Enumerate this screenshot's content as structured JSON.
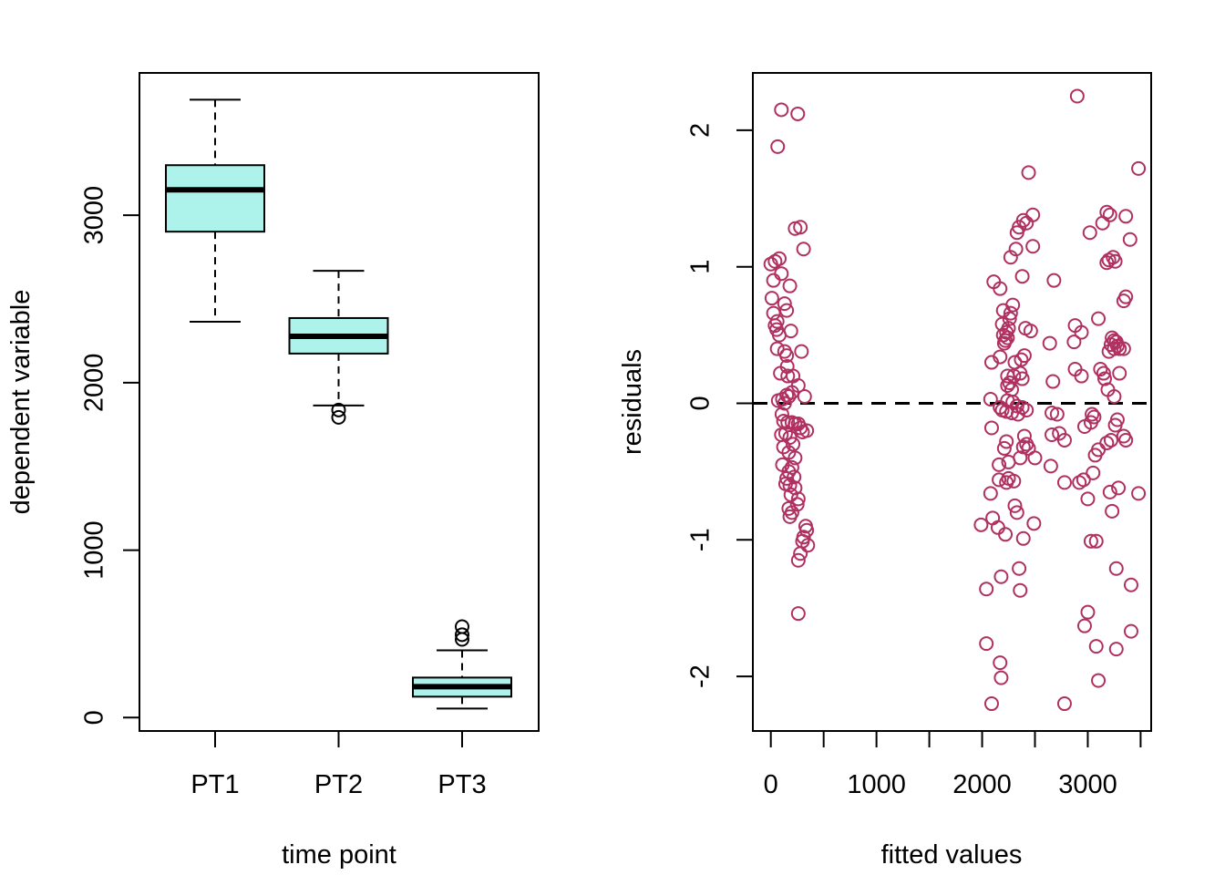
{
  "chart_data": [
    {
      "type": "box",
      "title": "",
      "xlabel": "time point",
      "ylabel": "dependent variable",
      "ylim": [
        -80,
        3850
      ],
      "yticks": [
        0,
        1000,
        2000,
        3000
      ],
      "ytick_labels": [
        "0",
        "1000",
        "2000",
        "3000"
      ],
      "categories": [
        "PT1",
        "PT2",
        "PT3"
      ],
      "box_fill": "#AEF2EC",
      "boxes": [
        {
          "name": "PT1",
          "whisker_low": 2364,
          "q1": 2902,
          "median": 3152,
          "q3": 3299,
          "whisker_high": 3690,
          "outliers": []
        },
        {
          "name": "PT2",
          "whisker_low": 1864,
          "q1": 2174,
          "median": 2277,
          "q3": 2386,
          "whisker_high": 2668,
          "outliers": [
            1837,
            1793
          ]
        },
        {
          "name": "PT3",
          "whisker_low": 54,
          "q1": 125,
          "median": 185,
          "q3": 239,
          "whisker_high": 402,
          "outliers": [
            543,
            495,
            467
          ]
        }
      ]
    },
    {
      "type": "scatter",
      "title": "",
      "xlabel": "fitted values",
      "ylabel": "residuals",
      "xlim": [
        -170,
        3600
      ],
      "ylim": [
        -2.4,
        2.42
      ],
      "xticks": [
        0,
        500,
        1000,
        1500,
        2000,
        2500,
        3000,
        3500
      ],
      "xtick_labels": [
        "0",
        "",
        "1000",
        "",
        "2000",
        "",
        "3000",
        ""
      ],
      "yticks": [
        -2,
        -1,
        0,
        1,
        2
      ],
      "ytick_labels": [
        "-2",
        "-1",
        "0",
        "1",
        "2"
      ],
      "point_color": "#B03060",
      "reference_line": {
        "y": 0,
        "style": "dashed"
      },
      "points": [
        [
          100,
          2.15
        ],
        [
          255,
          2.12
        ],
        [
          65,
          1.88
        ],
        [
          280,
          1.29
        ],
        [
          230,
          1.28
        ],
        [
          310,
          1.13
        ],
        [
          80,
          1.06
        ],
        [
          40,
          1.04
        ],
        [
          0,
          1.02
        ],
        [
          25,
          0.9
        ],
        [
          100,
          0.95
        ],
        [
          180,
          0.86
        ],
        [
          10,
          0.77
        ],
        [
          130,
          0.73
        ],
        [
          150,
          0.68
        ],
        [
          25,
          0.66
        ],
        [
          60,
          0.6
        ],
        [
          40,
          0.57
        ],
        [
          190,
          0.53
        ],
        [
          55,
          0.54
        ],
        [
          80,
          0.5
        ],
        [
          290,
          0.38
        ],
        [
          130,
          0.38
        ],
        [
          60,
          0.4
        ],
        [
          150,
          0.35
        ],
        [
          155,
          0.27
        ],
        [
          160,
          0.2
        ],
        [
          210,
          0.2
        ],
        [
          90,
          0.22
        ],
        [
          260,
          0.13
        ],
        [
          320,
          0.05
        ],
        [
          200,
          0.08
        ],
        [
          150,
          0.06
        ],
        [
          170,
          0.05
        ],
        [
          110,
          0.03
        ],
        [
          70,
          0.02
        ],
        [
          130,
          0.0
        ],
        [
          105,
          -0.08
        ],
        [
          120,
          -0.13
        ],
        [
          160,
          -0.14
        ],
        [
          200,
          -0.14
        ],
        [
          230,
          -0.15
        ],
        [
          260,
          -0.15
        ],
        [
          280,
          -0.18
        ],
        [
          300,
          -0.21
        ],
        [
          340,
          -0.2
        ],
        [
          140,
          -0.22
        ],
        [
          100,
          -0.23
        ],
        [
          180,
          -0.25
        ],
        [
          210,
          -0.3
        ],
        [
          120,
          -0.32
        ],
        [
          170,
          -0.36
        ],
        [
          230,
          -0.4
        ],
        [
          110,
          -0.45
        ],
        [
          200,
          -0.47
        ],
        [
          170,
          -0.5
        ],
        [
          220,
          -0.54
        ],
        [
          150,
          -0.55
        ],
        [
          140,
          -0.59
        ],
        [
          180,
          -0.6
        ],
        [
          230,
          -0.62
        ],
        [
          190,
          -0.67
        ],
        [
          260,
          -0.7
        ],
        [
          250,
          -0.74
        ],
        [
          170,
          -0.77
        ],
        [
          200,
          -0.8
        ],
        [
          180,
          -0.83
        ],
        [
          330,
          -0.9
        ],
        [
          340,
          -0.93
        ],
        [
          310,
          -0.98
        ],
        [
          300,
          -1.01
        ],
        [
          350,
          -1.04
        ],
        [
          280,
          -1.1
        ],
        [
          260,
          -1.15
        ],
        [
          260,
          -1.54
        ],
        [
          2900,
          2.25
        ],
        [
          3480,
          1.72
        ],
        [
          2440,
          1.69
        ],
        [
          2480,
          1.38
        ],
        [
          2390,
          1.34
        ],
        [
          2420,
          1.32
        ],
        [
          2350,
          1.29
        ],
        [
          2330,
          1.25
        ],
        [
          2320,
          1.13
        ],
        [
          2480,
          1.15
        ],
        [
          2270,
          1.07
        ],
        [
          2380,
          0.93
        ],
        [
          2110,
          0.89
        ],
        [
          2170,
          0.84
        ],
        [
          2680,
          0.9
        ],
        [
          3180,
          1.4
        ],
        [
          3210,
          1.38
        ],
        [
          3140,
          1.32
        ],
        [
          3020,
          1.25
        ],
        [
          3360,
          1.37
        ],
        [
          3400,
          1.2
        ],
        [
          3200,
          1.05
        ],
        [
          3240,
          1.07
        ],
        [
          3180,
          1.03
        ],
        [
          3260,
          1.04
        ],
        [
          3100,
          0.62
        ],
        [
          2880,
          0.57
        ],
        [
          3340,
          0.75
        ],
        [
          3360,
          0.78
        ],
        [
          2290,
          0.72
        ],
        [
          2270,
          0.66
        ],
        [
          2200,
          0.68
        ],
        [
          2260,
          0.62
        ],
        [
          2190,
          0.58
        ],
        [
          2250,
          0.55
        ],
        [
          2230,
          0.52
        ],
        [
          2200,
          0.5
        ],
        [
          2220,
          0.46
        ],
        [
          2240,
          0.48
        ],
        [
          2210,
          0.44
        ],
        [
          2410,
          0.55
        ],
        [
          2460,
          0.53
        ],
        [
          2640,
          0.44
        ],
        [
          2870,
          0.45
        ],
        [
          2940,
          0.52
        ],
        [
          3230,
          0.48
        ],
        [
          3250,
          0.46
        ],
        [
          3270,
          0.45
        ],
        [
          3220,
          0.43
        ],
        [
          3300,
          0.4
        ],
        [
          3250,
          0.4
        ],
        [
          3280,
          0.42
        ],
        [
          3340,
          0.4
        ],
        [
          3200,
          0.38
        ],
        [
          2170,
          0.34
        ],
        [
          2310,
          0.3
        ],
        [
          2370,
          0.32
        ],
        [
          2400,
          0.35
        ],
        [
          2090,
          0.3
        ],
        [
          2880,
          0.25
        ],
        [
          2940,
          0.2
        ],
        [
          3120,
          0.25
        ],
        [
          3150,
          0.22
        ],
        [
          3160,
          0.18
        ],
        [
          3300,
          0.22
        ],
        [
          2240,
          0.2
        ],
        [
          2300,
          0.2
        ],
        [
          2260,
          0.15
        ],
        [
          2240,
          0.13
        ],
        [
          2280,
          0.1
        ],
        [
          2360,
          0.22
        ],
        [
          2380,
          0.18
        ],
        [
          2670,
          0.16
        ],
        [
          3190,
          0.1
        ],
        [
          3250,
          0.05
        ],
        [
          2080,
          0.03
        ],
        [
          2240,
          0.02
        ],
        [
          2290,
          0.01
        ],
        [
          2330,
          -0.02
        ],
        [
          2380,
          -0.03
        ],
        [
          2190,
          -0.05
        ],
        [
          2230,
          -0.06
        ],
        [
          2170,
          -0.03
        ],
        [
          2280,
          -0.07
        ],
        [
          2340,
          -0.08
        ],
        [
          2420,
          -0.05
        ],
        [
          2660,
          -0.07
        ],
        [
          2710,
          -0.08
        ],
        [
          3040,
          -0.08
        ],
        [
          3060,
          -0.1
        ],
        [
          3030,
          -0.14
        ],
        [
          3280,
          -0.12
        ],
        [
          3260,
          -0.16
        ],
        [
          2090,
          -0.18
        ],
        [
          2230,
          -0.28
        ],
        [
          2400,
          -0.24
        ],
        [
          2420,
          -0.3
        ],
        [
          2440,
          -0.33
        ],
        [
          2390,
          -0.32
        ],
        [
          2250,
          -0.43
        ],
        [
          2360,
          -0.4
        ],
        [
          2500,
          -0.4
        ],
        [
          2160,
          -0.45
        ],
        [
          2210,
          -0.33
        ],
        [
          2730,
          -0.22
        ],
        [
          2660,
          -0.23
        ],
        [
          2780,
          -0.27
        ],
        [
          2970,
          -0.17
        ],
        [
          3070,
          -0.38
        ],
        [
          3100,
          -0.34
        ],
        [
          3180,
          -0.29
        ],
        [
          3220,
          -0.27
        ],
        [
          3340,
          -0.24
        ],
        [
          3360,
          -0.27
        ],
        [
          2650,
          -0.46
        ],
        [
          2780,
          -0.58
        ],
        [
          2920,
          -0.58
        ],
        [
          2960,
          -0.56
        ],
        [
          3050,
          -0.51
        ],
        [
          3000,
          -0.7
        ],
        [
          3210,
          -0.65
        ],
        [
          3290,
          -0.62
        ],
        [
          3230,
          -0.79
        ],
        [
          3480,
          -0.66
        ],
        [
          2230,
          -0.58
        ],
        [
          2250,
          -0.55
        ],
        [
          2300,
          -0.57
        ],
        [
          2160,
          -0.56
        ],
        [
          2080,
          -0.66
        ],
        [
          2310,
          -0.75
        ],
        [
          2330,
          -0.8
        ],
        [
          2100,
          -0.84
        ],
        [
          2150,
          -0.91
        ],
        [
          1990,
          -0.89
        ],
        [
          2490,
          -0.88
        ],
        [
          2220,
          -0.96
        ],
        [
          2390,
          -0.99
        ],
        [
          3030,
          -1.01
        ],
        [
          3080,
          -1.01
        ],
        [
          3270,
          -1.21
        ],
        [
          3410,
          -1.33
        ],
        [
          2350,
          -1.21
        ],
        [
          2180,
          -1.27
        ],
        [
          2040,
          -1.36
        ],
        [
          2360,
          -1.37
        ],
        [
          3000,
          -1.53
        ],
        [
          2970,
          -1.63
        ],
        [
          3080,
          -1.78
        ],
        [
          3270,
          -1.8
        ],
        [
          3410,
          -1.67
        ],
        [
          2040,
          -1.76
        ],
        [
          2170,
          -1.9
        ],
        [
          2180,
          -2.01
        ],
        [
          3100,
          -2.03
        ],
        [
          2090,
          -2.2
        ],
        [
          2780,
          -2.2
        ]
      ]
    }
  ]
}
